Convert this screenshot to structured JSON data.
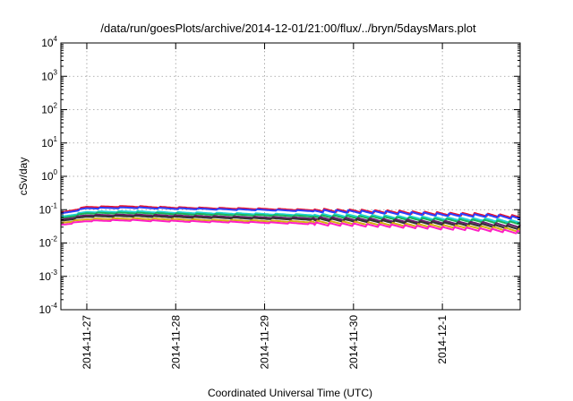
{
  "chart_data": {
    "type": "line",
    "title": "/data/run/goesPlots/archive/2014-12-01/21:00/flux/../bryn/5daysMars.plot",
    "xlabel": "Coordinated Universal Time (UTC)",
    "ylabel": "cSv/day",
    "yscale": "log",
    "ylim": [
      0.0001,
      10000
    ],
    "y_ticks": [
      {
        "base": "10",
        "exp": "-4",
        "value": 0.0001
      },
      {
        "base": "10",
        "exp": "-3",
        "value": 0.001
      },
      {
        "base": "10",
        "exp": "-2",
        "value": 0.01
      },
      {
        "base": "10",
        "exp": "-1",
        "value": 0.1
      },
      {
        "base": "10",
        "exp": "0",
        "value": 1
      },
      {
        "base": "10",
        "exp": "1",
        "value": 10
      },
      {
        "base": "10",
        "exp": "2",
        "value": 100
      },
      {
        "base": "10",
        "exp": "3",
        "value": 1000
      },
      {
        "base": "10",
        "exp": "4",
        "value": 10000
      }
    ],
    "xlim": [
      "2014-11-26 17:00",
      "2014-12-01 21:00"
    ],
    "x_ticks": [
      "2014-11-27",
      "2014-11-28",
      "2014-11-29",
      "2014-11-30",
      "2014-12-1"
    ],
    "grid": true,
    "series": [
      {
        "color": "#e8112d",
        "x": [
          "2014-11-26 17:00",
          "2014-11-27 00:00",
          "2014-11-27 12:00",
          "2014-11-28 00:00",
          "2014-11-28 12:00",
          "2014-11-29 00:00",
          "2014-11-29 12:00",
          "2014-11-30 00:00",
          "2014-11-30 12:00",
          "2014-12-01 00:00",
          "2014-12-01 12:00",
          "2014-12-01 21:00"
        ],
        "values": [
          0.08,
          0.12,
          0.125,
          0.115,
          0.11,
          0.105,
          0.098,
          0.092,
          0.085,
          0.075,
          0.07,
          0.06
        ]
      },
      {
        "color": "#2b3fff",
        "x": [
          "2014-11-26 17:00",
          "2014-11-27 00:00",
          "2014-11-27 12:00",
          "2014-11-28 00:00",
          "2014-11-28 12:00",
          "2014-11-29 00:00",
          "2014-11-29 12:00",
          "2014-11-30 00:00",
          "2014-11-30 12:00",
          "2014-12-01 00:00",
          "2014-12-01 12:00",
          "2014-12-01 21:00"
        ],
        "values": [
          0.075,
          0.11,
          0.115,
          0.108,
          0.103,
          0.098,
          0.092,
          0.087,
          0.08,
          0.071,
          0.066,
          0.056
        ]
      },
      {
        "color": "#1fd2d2",
        "x": [
          "2014-11-26 17:00",
          "2014-11-27 00:00",
          "2014-11-27 12:00",
          "2014-11-28 00:00",
          "2014-11-28 12:00",
          "2014-11-29 00:00",
          "2014-11-29 12:00",
          "2014-11-30 00:00",
          "2014-11-30 12:00",
          "2014-12-01 00:00",
          "2014-12-01 12:00",
          "2014-12-01 21:00"
        ],
        "values": [
          0.06,
          0.085,
          0.088,
          0.082,
          0.078,
          0.074,
          0.07,
          0.066,
          0.06,
          0.054,
          0.05,
          0.043
        ]
      },
      {
        "color": "#19b45a",
        "x": [
          "2014-11-26 17:00",
          "2014-11-27 00:00",
          "2014-11-27 12:00",
          "2014-11-28 00:00",
          "2014-11-28 12:00",
          "2014-11-29 00:00",
          "2014-11-29 12:00",
          "2014-11-30 00:00",
          "2014-11-30 12:00",
          "2014-12-01 00:00",
          "2014-12-01 12:00",
          "2014-12-01 21:00"
        ],
        "values": [
          0.055,
          0.078,
          0.08,
          0.075,
          0.071,
          0.068,
          0.064,
          0.06,
          0.055,
          0.049,
          0.045,
          0.039
        ]
      },
      {
        "color": "#6a1e6a",
        "x": [
          "2014-11-26 17:00",
          "2014-11-27 00:00",
          "2014-11-27 12:00",
          "2014-11-28 00:00",
          "2014-11-28 12:00",
          "2014-11-29 00:00",
          "2014-11-29 12:00",
          "2014-11-30 00:00",
          "2014-11-30 12:00",
          "2014-12-01 00:00",
          "2014-12-01 12:00",
          "2014-12-01 21:00"
        ],
        "values": [
          0.05,
          0.068,
          0.07,
          0.066,
          0.062,
          0.059,
          0.056,
          0.052,
          0.047,
          0.042,
          0.038,
          0.032
        ]
      },
      {
        "color": "#333333",
        "x": [
          "2014-11-26 17:00",
          "2014-11-27 00:00",
          "2014-11-27 12:00",
          "2014-11-28 00:00",
          "2014-11-28 12:00",
          "2014-11-29 00:00",
          "2014-11-29 12:00",
          "2014-11-30 00:00",
          "2014-11-30 12:00",
          "2014-12-01 00:00",
          "2014-12-01 12:00",
          "2014-12-01 21:00"
        ],
        "values": [
          0.046,
          0.062,
          0.064,
          0.06,
          0.057,
          0.054,
          0.051,
          0.047,
          0.043,
          0.038,
          0.034,
          0.028
        ]
      },
      {
        "color": "#d4b012",
        "x": [
          "2014-11-26 17:00",
          "2014-11-27 00:00",
          "2014-11-27 12:00",
          "2014-11-28 00:00",
          "2014-11-28 12:00",
          "2014-11-29 00:00",
          "2014-11-29 12:00",
          "2014-11-30 00:00",
          "2014-11-30 12:00",
          "2014-12-01 00:00",
          "2014-12-01 12:00",
          "2014-12-01 21:00"
        ],
        "values": [
          0.04,
          0.052,
          0.054,
          0.051,
          0.048,
          0.046,
          0.043,
          0.04,
          0.036,
          0.032,
          0.029,
          0.024
        ]
      },
      {
        "color": "#ff1fc4",
        "x": [
          "2014-11-26 17:00",
          "2014-11-27 00:00",
          "2014-11-27 12:00",
          "2014-11-28 00:00",
          "2014-11-28 12:00",
          "2014-11-29 00:00",
          "2014-11-29 12:00",
          "2014-11-30 00:00",
          "2014-11-30 12:00",
          "2014-12-01 00:00",
          "2014-12-01 12:00",
          "2014-12-01 21:00"
        ],
        "values": [
          0.035,
          0.046,
          0.048,
          0.045,
          0.043,
          0.041,
          0.038,
          0.035,
          0.032,
          0.028,
          0.025,
          0.021
        ]
      }
    ]
  }
}
